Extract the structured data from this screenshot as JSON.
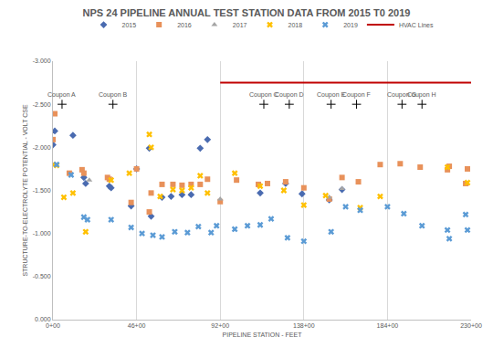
{
  "chart_data": {
    "type": "scatter",
    "title": "NPS 24 PIPELINE ANNUAL TEST STATION DATA FROM 2015 T0 2019",
    "x_label": "PIPELINE STATION - FEET",
    "y_label": "STRUCTURE-TO-ELECTROLYTE POTENTIAL - VOLT CSE",
    "xlim": [
      0,
      23000
    ],
    "xticks": [
      {
        "value": 0,
        "label": "0+00"
      },
      {
        "value": 4600,
        "label": "46+00"
      },
      {
        "value": 9200,
        "label": "92+00"
      },
      {
        "value": 13800,
        "label": "138+00"
      },
      {
        "value": 18400,
        "label": "184+00"
      },
      {
        "value": 23000,
        "label": "230+00"
      }
    ],
    "ylim": [
      0,
      -3
    ],
    "yticks": [
      {
        "value": 0,
        "label": "0.000"
      },
      {
        "value": -0.5,
        "label": "-0.500"
      },
      {
        "value": -1,
        "label": "-1.000"
      },
      {
        "value": -1.5,
        "label": "-1.500"
      },
      {
        "value": -2,
        "label": "-2.000"
      },
      {
        "value": -2.5,
        "label": "-2.500"
      },
      {
        "value": -3,
        "label": "-3.000"
      }
    ],
    "grid": "x",
    "legend": "top",
    "series": [
      {
        "name": "2015",
        "color": "#4a6bb0",
        "marker": "diamond",
        "x": [
          0,
          100,
          1100,
          1700,
          1800,
          3100,
          3200,
          4300,
          4600,
          5300,
          5400,
          6000,
          6500,
          7100,
          7600,
          8100,
          8500,
          11400,
          12800,
          13700,
          15200,
          15900
        ],
        "values": [
          -2.03,
          -2.19,
          -2.14,
          -1.65,
          -1.58,
          -1.55,
          -1.53,
          -1.32,
          -1.75,
          -1.99,
          -1.2,
          -1.42,
          -1.43,
          -1.45,
          -1.45,
          -1.99,
          -2.09,
          -1.47,
          -1.58,
          -1.46,
          -1.39,
          -1.51
        ]
      },
      {
        "name": "2016",
        "color": "#e8915a",
        "marker": "square",
        "x": [
          0,
          100,
          900,
          1600,
          1700,
          3000,
          3100,
          4300,
          4600,
          5300,
          5400,
          6000,
          6600,
          7100,
          7600,
          8100,
          8500,
          9200,
          10100,
          11300,
          11800,
          12800,
          13800,
          15200,
          15900,
          16800,
          18000,
          19100,
          20200,
          21700,
          21800,
          22700,
          22800
        ],
        "values": [
          -2.09,
          -2.39,
          -1.7,
          -1.74,
          -1.7,
          -1.65,
          -1.63,
          -1.36,
          -1.75,
          -1.25,
          -1.47,
          -1.57,
          -1.57,
          -1.56,
          -1.57,
          -1.57,
          -1.63,
          -1.37,
          -1.62,
          -1.57,
          -1.58,
          -1.6,
          -1.53,
          -1.4,
          -1.65,
          -1.6,
          -1.8,
          -1.81,
          -1.77,
          -1.74,
          -1.78,
          -1.58,
          -1.75
        ]
      },
      {
        "name": "2017",
        "color": "#a5a5a5",
        "marker": "triangle",
        "x": [
          2000,
          9200,
          15200,
          15900
        ],
        "values": [
          -1.62,
          -1.4,
          -1.42,
          -1.52
        ]
      },
      {
        "name": "2018",
        "color": "#ffc000",
        "marker": "x",
        "x": [
          0,
          200,
          600,
          1100,
          1800,
          3200,
          4200,
          5300,
          5400,
          5900,
          6600,
          7100,
          7600,
          8100,
          8500,
          10000,
          11400,
          12700,
          13800,
          15000,
          16900,
          18000,
          21700,
          22800
        ],
        "values": [
          -1.8,
          -1.79,
          -1.42,
          -1.47,
          -1.02,
          -1.62,
          -1.7,
          -2.15,
          -2.0,
          -1.43,
          -1.51,
          -1.5,
          -1.53,
          -1.67,
          -1.47,
          -1.7,
          -1.55,
          -1.5,
          -1.33,
          -1.44,
          -1.3,
          -1.43,
          -1.77,
          -1.59
        ]
      },
      {
        "name": "2019",
        "color": "#5b9bd5",
        "marker": "x",
        "x": [
          200,
          1000,
          1700,
          1900,
          3200,
          4300,
          4900,
          5500,
          6000,
          6700,
          7400,
          8000,
          8700,
          9000,
          10000,
          10700,
          11400,
          12000,
          12900,
          13800,
          15300,
          16100,
          16900,
          18400,
          19300,
          20300,
          21700,
          21800,
          22700,
          22800
        ],
        "values": [
          -1.8,
          -1.68,
          -1.19,
          -1.16,
          -1.16,
          -1.07,
          -1.0,
          -0.98,
          -0.96,
          -1.02,
          -1.01,
          -1.08,
          -1.01,
          -1.09,
          -1.05,
          -1.09,
          -1.1,
          -1.17,
          -0.95,
          -0.91,
          -1.02,
          -1.31,
          -1.27,
          -1.31,
          -1.23,
          -1.09,
          -1.04,
          -0.94,
          -1.22,
          -1.04
        ]
      },
      {
        "name": "HVAC Lines",
        "color": "#c00000",
        "type": "line",
        "x": [
          9200,
          23000
        ],
        "values": [
          -2.75,
          -2.75
        ]
      }
    ],
    "annotations": [
      {
        "text": "Coupon A",
        "x": 500,
        "y": -2.5
      },
      {
        "text": "Coupon B",
        "x": 3300,
        "y": -2.5
      },
      {
        "text": "Coupon C",
        "x": 11600,
        "y": -2.5
      },
      {
        "text": "Coupon D",
        "x": 13000,
        "y": -2.5
      },
      {
        "text": "Coupon E",
        "x": 15300,
        "y": -2.5
      },
      {
        "text": "Coupon F",
        "x": 16700,
        "y": -2.5
      },
      {
        "text": "Coupon G",
        "x": 19200,
        "y": -2.5
      },
      {
        "text": "Coupon H",
        "x": 20300,
        "y": -2.5
      }
    ]
  }
}
